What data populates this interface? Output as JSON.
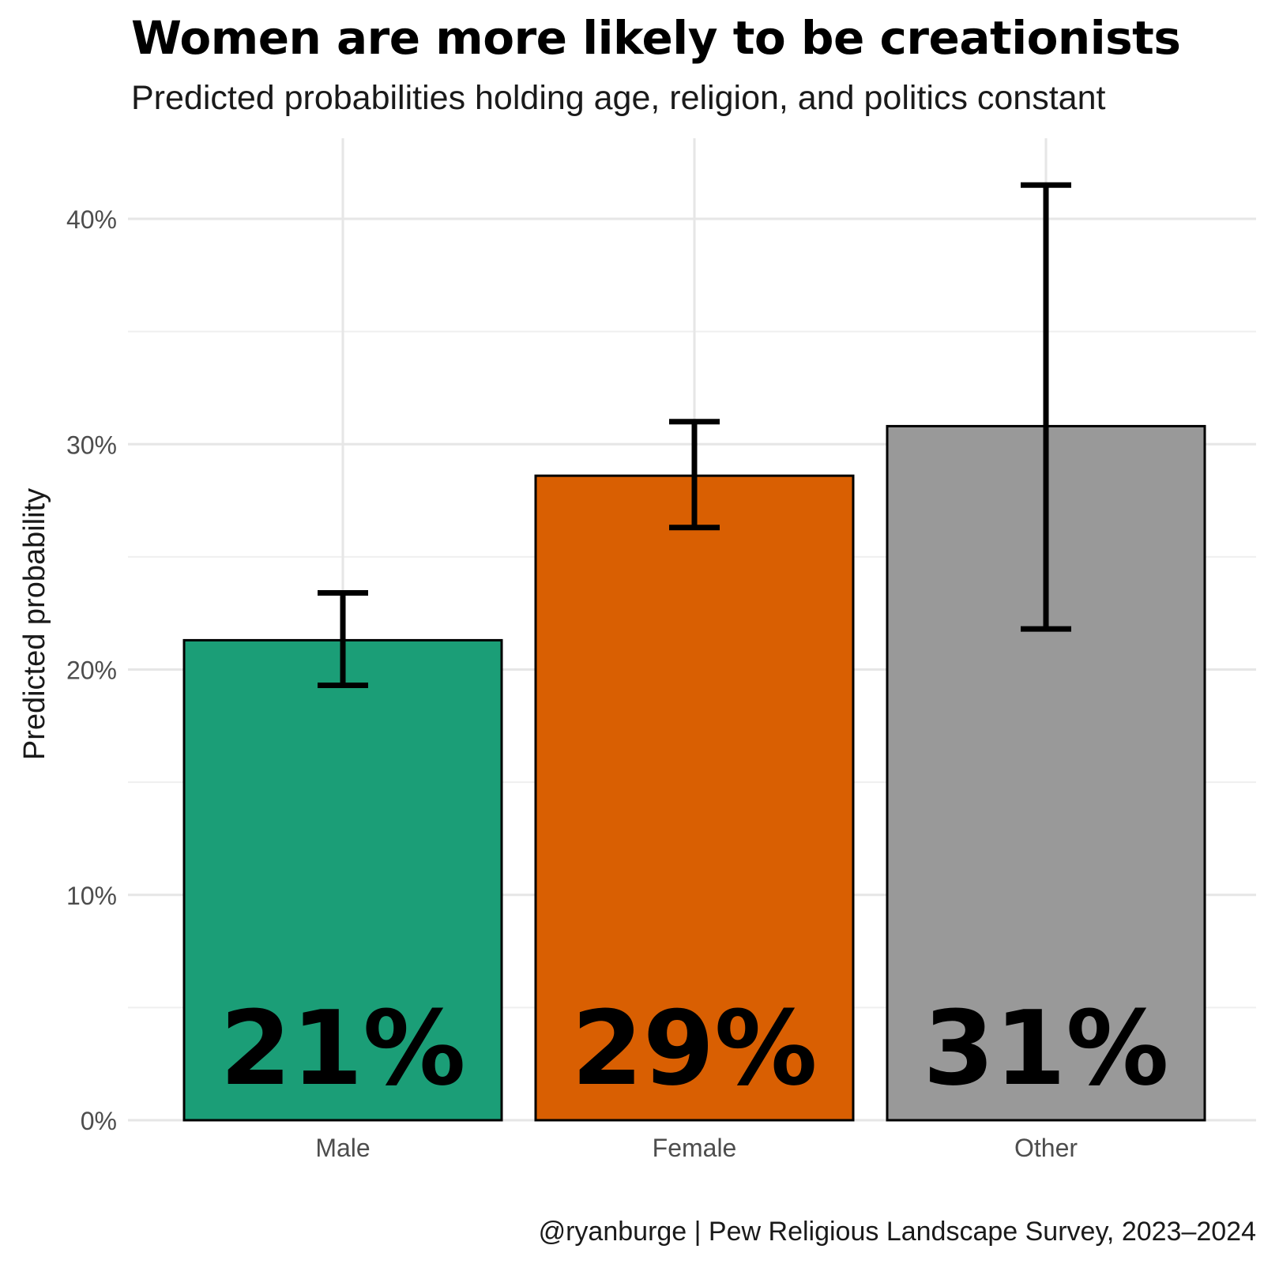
{
  "chart_data": {
    "type": "bar",
    "title": "Women are more likely to be creationists",
    "subtitle": "Predicted probabilities holding age, religion, and politics constant",
    "caption": "@ryanburge | Pew Religious Landscape Survey, 2023–2024",
    "ylabel": "Predicted probability",
    "xlabel": "",
    "ylim": [
      0,
      0.43
    ],
    "y_ticks": [
      0,
      0.1,
      0.2,
      0.3,
      0.4
    ],
    "y_tick_labels": [
      "0%",
      "10%",
      "20%",
      "30%",
      "40%"
    ],
    "grid": true,
    "categories": [
      "Male",
      "Female",
      "Other"
    ],
    "values": [
      0.213,
      0.286,
      0.308
    ],
    "error_low": [
      0.193,
      0.263,
      0.218
    ],
    "error_high": [
      0.234,
      0.31,
      0.415
    ],
    "data_labels": [
      "21%",
      "29%",
      "31%"
    ],
    "colors": [
      "#1B9E77",
      "#D95F02",
      "#999999"
    ]
  }
}
